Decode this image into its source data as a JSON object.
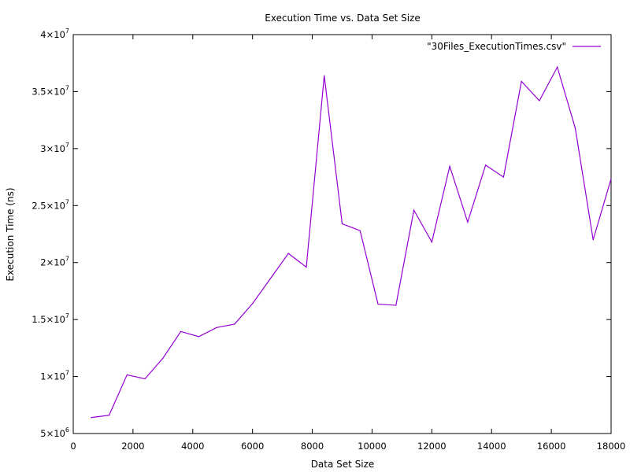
{
  "chart_data": {
    "type": "line",
    "title": "Execution Time vs. Data Set Size",
    "xlabel": "Data Set Size",
    "ylabel": "Execution Time (ns)",
    "xlim": [
      0,
      18000
    ],
    "ylim": [
      5000000,
      40000000
    ],
    "x_ticks": [
      "0",
      "2000",
      "4000",
      "6000",
      "8000",
      "10000",
      "12000",
      "14000",
      "16000",
      "18000"
    ],
    "y_ticks": [
      {
        "mantissa": "5",
        "base": "×10",
        "exp": "6",
        "value": 5000000
      },
      {
        "mantissa": "1",
        "base": "×10",
        "exp": "7",
        "value": 10000000
      },
      {
        "mantissa": "1.5",
        "base": "×10",
        "exp": "7",
        "value": 15000000
      },
      {
        "mantissa": "2",
        "base": "×10",
        "exp": "7",
        "value": 20000000
      },
      {
        "mantissa": "2.5",
        "base": "×10",
        "exp": "7",
        "value": 25000000
      },
      {
        "mantissa": "3",
        "base": "×10",
        "exp": "7",
        "value": 30000000
      },
      {
        "mantissa": "3.5",
        "base": "×10",
        "exp": "7",
        "value": 35000000
      },
      {
        "mantissa": "4",
        "base": "×10",
        "exp": "7",
        "value": 40000000
      }
    ],
    "grid": false,
    "legend_position": "top-right",
    "series": [
      {
        "name": "\"30Files_ExecutionTimes.csv\"",
        "color": "#9400d3",
        "x": [
          600,
          1200,
          1800,
          2400,
          3000,
          3600,
          4200,
          4800,
          5400,
          6000,
          6600,
          7200,
          7800,
          8400,
          9000,
          9600,
          10200,
          10800,
          11400,
          12000,
          12600,
          13200,
          13800,
          14400,
          15000,
          15600,
          16200,
          16800,
          17400,
          18000
        ],
        "y": [
          6400000,
          6600000,
          10150000,
          9800000,
          11600000,
          13950000,
          13500000,
          14300000,
          14600000,
          16400000,
          18600000,
          20800000,
          19600000,
          36400000,
          23400000,
          22800000,
          16350000,
          16250000,
          24600000,
          21800000,
          28450000,
          23550000,
          28550000,
          27500000,
          35900000,
          34200000,
          37150000,
          31800000,
          22000000,
          27350000
        ]
      }
    ]
  }
}
